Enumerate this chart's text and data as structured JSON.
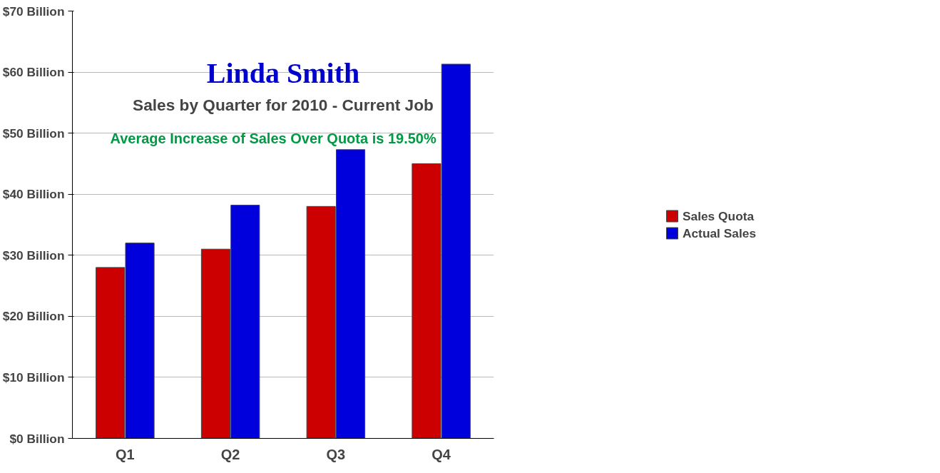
{
  "chart_data": {
    "type": "bar",
    "title": "Linda Smith",
    "subtitle": "Sales by Quarter for 2010 - Current Job",
    "annotations": [
      "Average  Increase  of  Sales  Over Quota  is 19.50%"
    ],
    "categories": [
      "Q1",
      "Q2",
      "Q3",
      "Q4"
    ],
    "series": [
      {
        "name": "Sales Quota",
        "color": "#cc0000",
        "values": [
          28,
          31,
          38,
          45
        ]
      },
      {
        "name": "Actual Sales",
        "color": "#0000dd",
        "values": [
          32,
          38.2,
          47.3,
          61.3
        ]
      }
    ],
    "ylim": [
      0,
      70
    ],
    "yticks": [
      {
        "value": 0,
        "label": "$0 Billion"
      },
      {
        "value": 10,
        "label": "$10 Billion"
      },
      {
        "value": 20,
        "label": "$20 Billion"
      },
      {
        "value": 30,
        "label": "$30 Billion"
      },
      {
        "value": 40,
        "label": "$40 Billion"
      },
      {
        "value": 50,
        "label": "$50 Billion"
      },
      {
        "value": 60,
        "label": "$60 Billion"
      },
      {
        "value": 70,
        "label": "$70 Billion"
      }
    ],
    "grid": "y",
    "legend": "right"
  }
}
